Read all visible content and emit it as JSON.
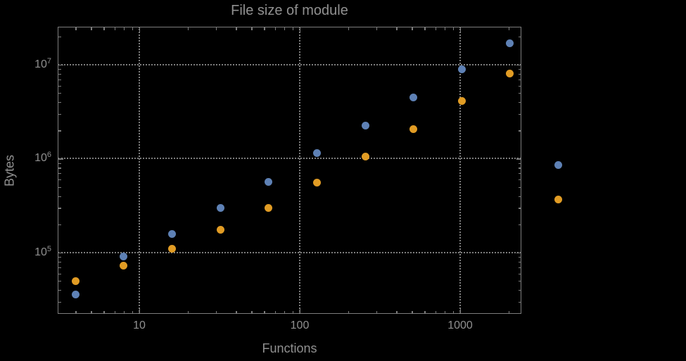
{
  "colors": {
    "background": "#000000",
    "frame": "#7d7d7d",
    "grid": "#7d7d7d",
    "text": "#909090",
    "series1": "#5E81B5",
    "series2": "#E19C24"
  },
  "chart_data": {
    "type": "scatter",
    "title": "File size of module",
    "xlabel": "Functions",
    "ylabel": "Bytes",
    "x_scale": "log10",
    "y_scale": "log10",
    "grid": "dotted at decades",
    "legend": "none",
    "x_log_range": [
      0.4912,
      3.3816
    ],
    "y_log_range": [
      4.3483,
      7.4045
    ],
    "x_ticks": [
      {
        "label": "10",
        "value": 10
      },
      {
        "label": "100",
        "value": 100
      },
      {
        "label": "1000",
        "value": 1000
      }
    ],
    "y_ticks": [
      {
        "label": "10^5",
        "value": 100000
      },
      {
        "label": "10^6",
        "value": 1000000
      },
      {
        "label": "10^7",
        "value": 10000000
      }
    ],
    "x": [
      4,
      8,
      16,
      32,
      64,
      128,
      256,
      512,
      1024,
      2048,
      4096
    ],
    "series": [
      {
        "name": "series-1-blue",
        "color": "#5E81B5",
        "values": [
          36000,
          91000,
          157000,
          300000,
          570000,
          1140000,
          2250000,
          4450000,
          8900000,
          17000000,
          860000
        ]
      },
      {
        "name": "series-2-orange",
        "color": "#E19C24",
        "values": [
          50000,
          73000,
          110000,
          174000,
          300000,
          560000,
          1050000,
          2080000,
          4100000,
          8100000,
          370000
        ]
      }
    ],
    "marker_diameter_px": 11
  }
}
